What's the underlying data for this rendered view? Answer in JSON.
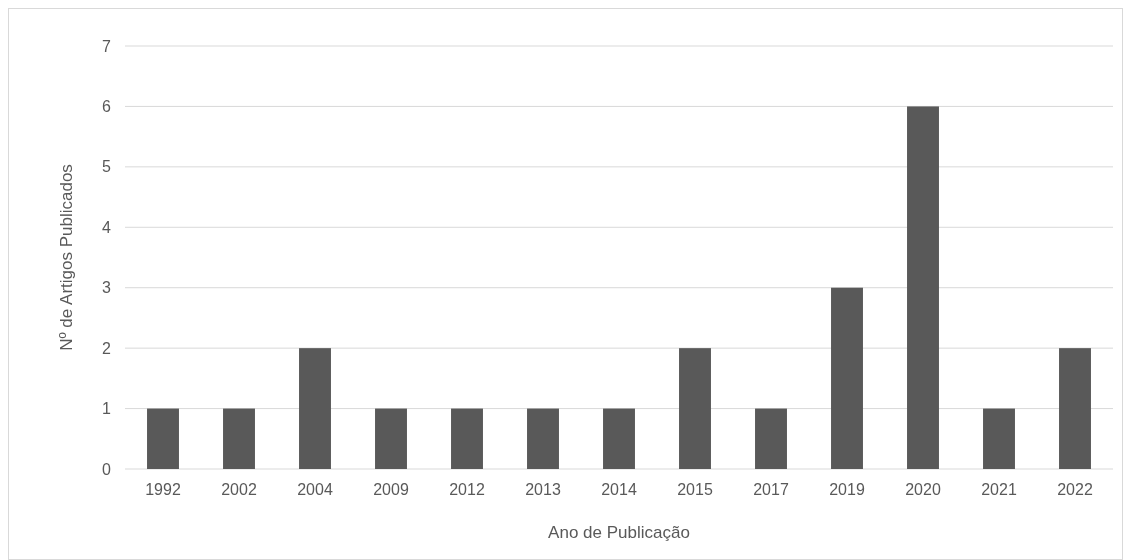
{
  "chart_data": {
    "type": "bar",
    "xlabel": "Ano de Publicação",
    "ylabel": "Nº de Artigos Publicados",
    "categories": [
      "1992",
      "2002",
      "2004",
      "2009",
      "2012",
      "2013",
      "2014",
      "2015",
      "2017",
      "2019",
      "2020",
      "2021",
      "2022"
    ],
    "values": [
      1,
      1,
      2,
      1,
      1,
      1,
      1,
      2,
      1,
      3,
      6,
      1,
      2
    ],
    "color": "#595959",
    "ylim": [
      0,
      7
    ],
    "yticks": [
      0,
      1,
      2,
      3,
      4,
      5,
      6,
      7
    ],
    "grid": "y"
  }
}
